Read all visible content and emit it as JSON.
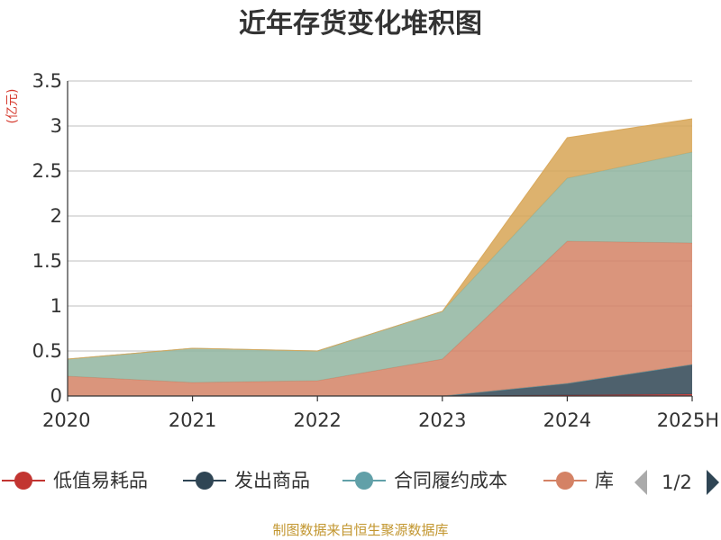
{
  "chart_data": {
    "type": "area",
    "stacked": true,
    "title": "近年存货变化堆积图",
    "unit_label": "(亿元)",
    "categories": [
      "2020",
      "2021",
      "2022",
      "2023",
      "2024",
      "2025H"
    ],
    "yticks": [
      "0",
      "0.5",
      "1",
      "1.5",
      "2",
      "2.5",
      "3",
      "3.5"
    ],
    "ylim": [
      0,
      3.5
    ],
    "grid": true,
    "series": [
      {
        "name": "低值易耗品",
        "color": "#c23531",
        "values": [
          0,
          0,
          0,
          0,
          0.01,
          0.02
        ]
      },
      {
        "name": "发出商品",
        "color": "#2f4554",
        "values": [
          0,
          0,
          0,
          0,
          0.13,
          0.33
        ]
      },
      {
        "name": "合同履约成本",
        "color": "#61a0a8",
        "values": [
          0,
          0,
          0,
          0,
          0,
          0
        ]
      },
      {
        "name": "库存商品",
        "color": "#d48265",
        "values": [
          0.22,
          0.15,
          0.17,
          0.41,
          1.58,
          1.35
        ]
      },
      {
        "name": "",
        "color": "#91b5a0",
        "values": [
          0.19,
          0.38,
          0.33,
          0.53,
          0.7,
          1.01
        ]
      },
      {
        "name": "",
        "color": "#d7a555",
        "values": [
          0,
          0,
          0,
          0,
          0.45,
          0.37
        ]
      }
    ],
    "legend": {
      "placement": "bottom",
      "page": "1/2",
      "visible_items": [
        "低值易耗品",
        "发出商品",
        "合同履约成本",
        "库"
      ]
    },
    "source": "制图数据来自恒生聚源数据库"
  }
}
